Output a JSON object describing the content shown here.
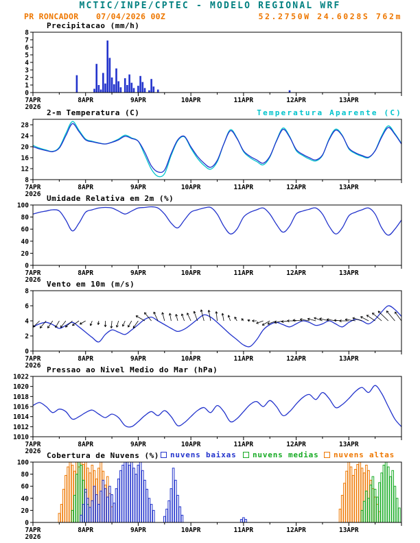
{
  "header": {
    "title": "MCTIC/INPE/CPTEC - MODELO REGIONAL WRF",
    "station": "PR RONCADOR",
    "run_datetime": "07/04/2026 00Z",
    "location": "52.2750W 24.6028S 762m"
  },
  "colors": {
    "teal": "#008080",
    "orange": "#ee7700",
    "blue": "#2233cc",
    "cyan": "#00c3cc",
    "green": "#15aa22",
    "black": "#000000"
  },
  "x_axis": {
    "labels": [
      "7APR",
      "8APR",
      "9APR",
      "10APR",
      "11APR",
      "12APR",
      "13APR"
    ],
    "year": "2026",
    "hours_span": 168,
    "label_step_hours": 24
  },
  "chart_data": [
    {
      "id": "precipitation",
      "type": "bar",
      "title": "Precipitacao (mm/h)",
      "ylim": [
        0,
        8
      ],
      "yticks": [
        0,
        1,
        2,
        3,
        4,
        5,
        6,
        7,
        8
      ],
      "color": "blue",
      "values_by_hour": {
        "20": 2.3,
        "28": 0.5,
        "29": 3.8,
        "30": 1.0,
        "31": 0.4,
        "32": 2.6,
        "33": 1.2,
        "34": 6.9,
        "35": 4.6,
        "36": 2.0,
        "37": 1.1,
        "38": 3.2,
        "39": 1.5,
        "40": 0.7,
        "42": 1.9,
        "43": 1.0,
        "44": 2.4,
        "45": 1.3,
        "46": 0.6,
        "48": 0.9,
        "49": 2.2,
        "50": 1.4,
        "51": 0.6,
        "53": 0.3,
        "54": 1.8,
        "55": 0.8,
        "57": 0.4,
        "117": 0.3
      }
    },
    {
      "id": "temperature",
      "type": "line",
      "title": "2-m Temperatura (C)",
      "secondary_title": "Temperatura Aparente (C)",
      "ylim": [
        8,
        30
      ],
      "yticks": [
        8,
        12,
        16,
        20,
        24,
        28
      ],
      "step_hours": 3,
      "series": [
        {
          "id": "t2m",
          "name": "2-m Temperatura (C)",
          "color": "blue",
          "values": [
            20.0,
            19.2,
            18.6,
            18.2,
            19.5,
            24.0,
            28.4,
            25.5,
            22.5,
            21.8,
            21.3,
            21.0,
            21.6,
            22.5,
            23.8,
            23.0,
            22.0,
            18.0,
            13.0,
            10.8,
            11.5,
            17.5,
            22.5,
            23.8,
            20.0,
            16.5,
            14.0,
            12.5,
            15.0,
            21.0,
            25.8,
            23.0,
            18.5,
            16.5,
            15.2,
            14.0,
            16.5,
            22.0,
            26.3,
            23.5,
            19.0,
            17.2,
            16.0,
            15.2,
            17.0,
            22.5,
            26.0,
            24.0,
            19.5,
            17.8,
            16.8,
            16.2,
            18.5,
            23.5,
            27.0,
            24.5,
            21.0
          ]
        },
        {
          "id": "apparent",
          "name": "Temperatura Aparente (C)",
          "color": "cyan",
          "values": [
            20.5,
            19.5,
            18.8,
            18.3,
            19.8,
            24.8,
            29.2,
            26.0,
            22.8,
            22.0,
            21.4,
            21.0,
            21.7,
            22.8,
            24.2,
            23.2,
            22.0,
            17.0,
            11.8,
            9.2,
            10.2,
            16.8,
            22.2,
            23.6,
            19.5,
            15.8,
            13.2,
            11.8,
            14.5,
            21.0,
            26.2,
            23.2,
            18.2,
            16.0,
            14.6,
            13.4,
            16.2,
            22.2,
            26.8,
            23.8,
            18.6,
            16.8,
            15.5,
            14.8,
            16.8,
            22.8,
            26.4,
            24.2,
            19.2,
            17.5,
            16.5,
            16.0,
            18.6,
            24.0,
            27.6,
            24.8,
            21.2
          ]
        }
      ]
    },
    {
      "id": "humidity",
      "type": "line",
      "title": "Umidade Relativa em 2m (%)",
      "ylim": [
        0,
        100
      ],
      "yticks": [
        0,
        20,
        40,
        60,
        80,
        100
      ],
      "step_hours": 3,
      "series": [
        {
          "id": "rh2m",
          "name": "Umidade Relativa em 2m (%)",
          "color": "blue",
          "values": [
            85,
            88,
            90,
            92,
            90,
            75,
            57,
            70,
            88,
            92,
            95,
            96,
            95,
            90,
            85,
            90,
            95,
            96,
            97,
            95,
            85,
            70,
            62,
            75,
            88,
            92,
            95,
            96,
            85,
            65,
            52,
            60,
            80,
            88,
            92,
            95,
            85,
            68,
            55,
            65,
            85,
            90,
            93,
            95,
            85,
            65,
            52,
            62,
            82,
            88,
            92,
            95,
            85,
            62,
            50,
            60,
            75
          ]
        }
      ]
    },
    {
      "id": "wind",
      "type": "line",
      "title": "Vento em 10m (m/s)",
      "ylim": [
        0,
        8
      ],
      "yticks": [
        0,
        2,
        4,
        6,
        8
      ],
      "step_hours": 3,
      "series": [
        {
          "id": "wind-speed",
          "name": "Vento em 10m (m/s)",
          "color": "blue",
          "values": [
            3.2,
            3.6,
            3.8,
            3.5,
            3.0,
            3.4,
            3.8,
            3.2,
            2.5,
            1.8,
            1.2,
            2.2,
            2.8,
            2.5,
            2.2,
            2.8,
            3.5,
            4.2,
            4.5,
            4.0,
            3.5,
            3.0,
            2.6,
            2.9,
            3.5,
            4.2,
            4.8,
            4.5,
            3.8,
            3.0,
            2.2,
            1.5,
            0.8,
            0.6,
            1.5,
            2.8,
            3.5,
            3.8,
            3.5,
            3.2,
            3.6,
            4.0,
            3.8,
            3.4,
            3.6,
            4.0,
            3.6,
            3.2,
            3.8,
            4.2,
            4.0,
            3.6,
            4.2,
            5.2,
            6.0,
            5.5,
            4.6
          ]
        }
      ],
      "vectors": {
        "anchor_value": 4,
        "dir_deg": [
          220,
          225,
          230,
          235,
          240,
          232,
          222,
          215,
          210,
          250,
          262,
          270,
          265,
          255,
          246,
          240,
          235,
          150,
          130,
          115,
          105,
          100,
          105,
          110,
          115,
          110,
          105,
          100,
          96,
          100,
          110,
          120,
          130,
          160,
          180,
          200,
          210,
          200,
          192,
          186,
          180,
          176,
          170,
          165,
          160,
          166,
          170,
          176,
          180,
          172,
          162,
          152,
          146,
          140,
          136,
          130,
          126
        ]
      }
    },
    {
      "id": "pressure",
      "type": "line",
      "title": "Pressao ao Nivel Medio do Mar (hPa)",
      "ylim": [
        1010,
        1022
      ],
      "yticks": [
        1010,
        1012,
        1014,
        1016,
        1018,
        1020,
        1022
      ],
      "step_hours": 3,
      "series": [
        {
          "id": "slp",
          "name": "Pressao ao Nivel Medio do Mar (hPa)",
          "color": "blue",
          "values": [
            1016.2,
            1016.8,
            1016.0,
            1014.8,
            1015.5,
            1015.0,
            1013.5,
            1014.0,
            1014.8,
            1015.3,
            1014.5,
            1013.8,
            1014.5,
            1013.8,
            1012.2,
            1012.0,
            1013.0,
            1014.2,
            1015.0,
            1014.2,
            1015.2,
            1014.0,
            1012.2,
            1012.8,
            1014.0,
            1015.2,
            1015.8,
            1014.8,
            1016.2,
            1015.0,
            1013.0,
            1013.6,
            1015.0,
            1016.4,
            1017.0,
            1016.0,
            1017.2,
            1016.0,
            1014.2,
            1015.0,
            1016.5,
            1017.8,
            1018.4,
            1017.4,
            1018.8,
            1017.6,
            1015.8,
            1016.4,
            1017.6,
            1019.0,
            1019.8,
            1018.8,
            1020.2,
            1018.6,
            1016.0,
            1013.5,
            1012.0
          ]
        }
      ]
    },
    {
      "id": "clouds",
      "type": "bar-multi",
      "title": "Cobertura de Nuvens (%)",
      "ylim": [
        0,
        100
      ],
      "yticks": [
        0,
        20,
        40,
        60,
        80,
        100
      ],
      "legend": [
        {
          "label": "nuvens baixas",
          "color": "blue"
        },
        {
          "label": "nuvens medias",
          "color": "green"
        },
        {
          "label": "nuvens altas",
          "color": "orange"
        }
      ],
      "series": [
        {
          "id": "high",
          "name": "nuvens altas",
          "color": "orange",
          "values_by_hour": {
            "12": 15,
            "13": 30,
            "14": 55,
            "15": 78,
            "16": 92,
            "17": 100,
            "18": 95,
            "19": 85,
            "20": 100,
            "21": 92,
            "22": 100,
            "23": 96,
            "24": 100,
            "25": 90,
            "26": 82,
            "27": 95,
            "28": 86,
            "29": 72,
            "30": 90,
            "31": 100,
            "32": 85,
            "33": 62,
            "34": 76,
            "35": 48,
            "36": 26,
            "140": 22,
            "141": 45,
            "142": 65,
            "143": 85,
            "144": 100,
            "145": 92,
            "146": 78,
            "147": 88,
            "148": 96,
            "149": 100,
            "150": 90,
            "151": 82,
            "152": 95,
            "153": 86,
            "154": 70,
            "155": 56,
            "156": 42,
            "157": 30,
            "158": 18
          }
        },
        {
          "id": "mid",
          "name": "nuvens medias",
          "color": "green",
          "values_by_hour": {
            "18": 20,
            "19": 45,
            "20": 80,
            "21": 100,
            "22": 95,
            "23": 70,
            "24": 50,
            "25": 30,
            "150": 20,
            "151": 35,
            "152": 52,
            "153": 40,
            "154": 62,
            "155": 76,
            "156": 55,
            "157": 42,
            "158": 66,
            "159": 82,
            "160": 95,
            "161": 100,
            "162": 92,
            "163": 76,
            "164": 86,
            "165": 60,
            "166": 40,
            "167": 24
          }
        },
        {
          "id": "low",
          "name": "nuvens baixas",
          "color": "blue",
          "values_by_hour": {
            "22": 12,
            "23": 30,
            "24": 55,
            "25": 40,
            "26": 25,
            "27": 36,
            "28": 60,
            "29": 46,
            "30": 30,
            "31": 52,
            "32": 70,
            "33": 56,
            "34": 42,
            "35": 60,
            "36": 46,
            "37": 32,
            "38": 56,
            "39": 72,
            "40": 86,
            "41": 95,
            "42": 100,
            "43": 100,
            "44": 95,
            "45": 100,
            "46": 90,
            "47": 80,
            "48": 95,
            "49": 100,
            "50": 86,
            "51": 70,
            "52": 55,
            "53": 40,
            "54": 30,
            "55": 20,
            "60": 10,
            "61": 22,
            "62": 36,
            "63": 56,
            "64": 90,
            "65": 70,
            "66": 45,
            "67": 26,
            "68": 12,
            "95": 5,
            "96": 8,
            "97": 5
          }
        }
      ]
    }
  ]
}
